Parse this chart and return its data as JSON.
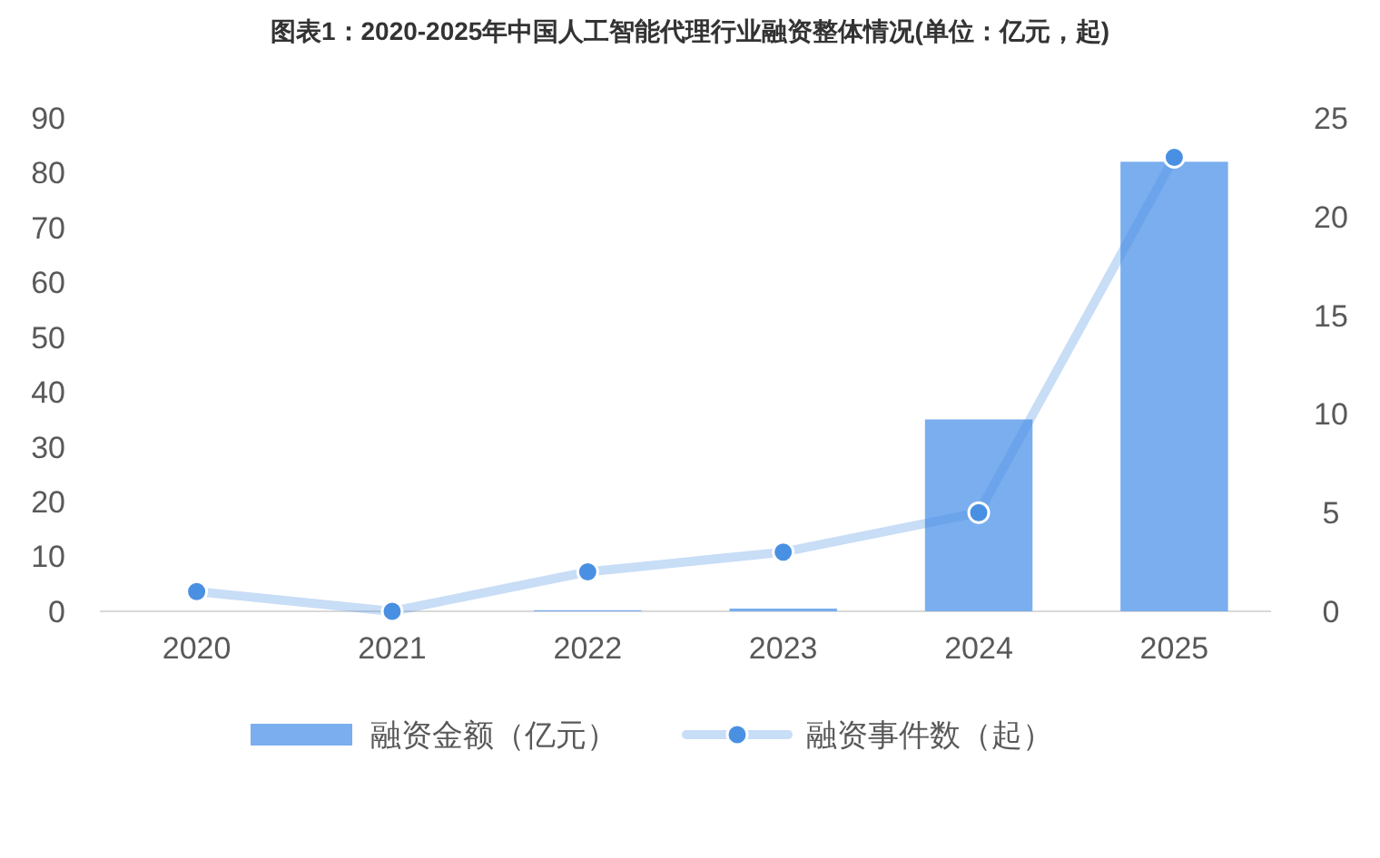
{
  "chart_data": {
    "type": "bar",
    "title": "图表1：2020-2025年中国人工智能代理行业融资整体情况(单位：亿元，起)",
    "categories": [
      "2020",
      "2021",
      "2022",
      "2023",
      "2024",
      "2025"
    ],
    "series": [
      {
        "name": "融资金额（亿元）",
        "color": "#7aaeee",
        "values": [
          0,
          0,
          0.2,
          0.5,
          35,
          82
        ]
      },
      {
        "name": "融资事件数（起）",
        "type": "line",
        "axis": "y2",
        "color": "#4a90e2",
        "marker": "circle",
        "values": [
          1,
          0,
          2,
          3,
          5,
          23
        ]
      }
    ],
    "ylim": [
      0,
      90
    ],
    "yticks": [
      0,
      10,
      20,
      30,
      40,
      50,
      60,
      70,
      80,
      90
    ],
    "y2lim": [
      0,
      25
    ],
    "y2ticks": [
      0,
      5,
      10,
      15,
      20,
      25
    ],
    "legend": "bottom"
  }
}
